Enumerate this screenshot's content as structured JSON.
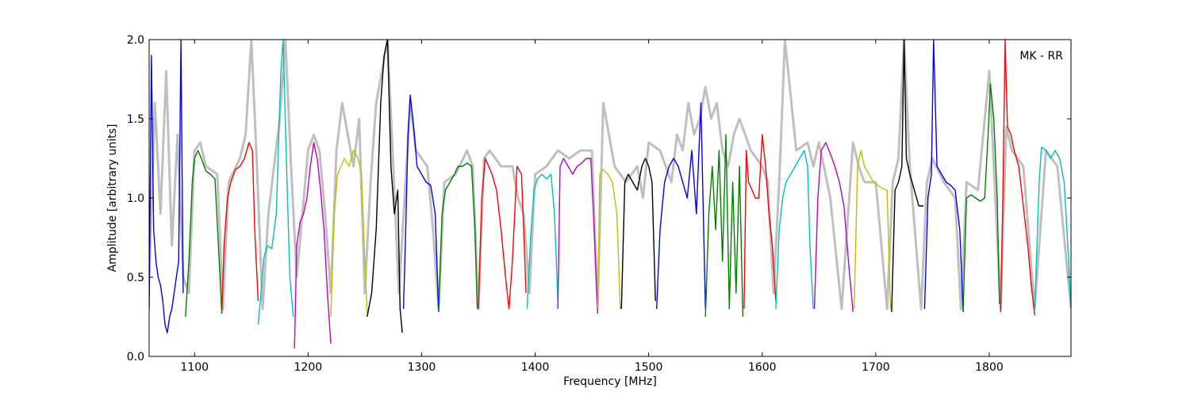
{
  "chart_data": {
    "type": "line",
    "title": "",
    "xlabel": "Frequency [MHz]",
    "ylabel": "Amplitude [arbitrary units]",
    "xlim": [
      1060,
      1872
    ],
    "ylim": [
      0.0,
      2.0
    ],
    "xticks": [
      "1100",
      "1200",
      "1300",
      "1400",
      "1500",
      "1600",
      "1700",
      "1800"
    ],
    "yticks": [
      "0.0",
      "0.5",
      "1.0",
      "1.5",
      "2.0"
    ],
    "annotation": "MK - RR",
    "grid": false,
    "legend": "none",
    "background_series": {
      "color": "#bfbfbf",
      "description_key": "unflagged",
      "x": [
        1060,
        1065,
        1070,
        1075,
        1080,
        1085,
        1090,
        1095,
        1100,
        1105,
        1110,
        1120,
        1125,
        1130,
        1140,
        1145,
        1150,
        1155,
        1160,
        1165,
        1170,
        1175,
        1180,
        1185,
        1190,
        1195,
        1200,
        1205,
        1210,
        1215,
        1220,
        1225,
        1230,
        1235,
        1240,
        1245,
        1250,
        1255,
        1260,
        1265,
        1270,
        1275,
        1280,
        1285,
        1290,
        1295,
        1300,
        1305,
        1310,
        1315,
        1320,
        1330,
        1340,
        1345,
        1350,
        1355,
        1360,
        1370,
        1380,
        1385,
        1390,
        1395,
        1400,
        1410,
        1420,
        1430,
        1440,
        1450,
        1455,
        1460,
        1470,
        1480,
        1490,
        1495,
        1500,
        1510,
        1520,
        1525,
        1530,
        1535,
        1540,
        1545,
        1550,
        1555,
        1560,
        1565,
        1570,
        1575,
        1580,
        1590,
        1600,
        1605,
        1610,
        1615,
        1620,
        1630,
        1640,
        1645,
        1650,
        1660,
        1670,
        1680,
        1685,
        1690,
        1700,
        1710,
        1715,
        1720,
        1725,
        1730,
        1740,
        1745,
        1750,
        1760,
        1770,
        1775,
        1780,
        1790,
        1800,
        1810,
        1815,
        1820,
        1830,
        1840,
        1850,
        1860,
        1872
      ],
      "y": [
        0.5,
        1.6,
        0.9,
        1.8,
        0.7,
        1.4,
        0.5,
        0.4,
        1.3,
        1.35,
        1.2,
        1.15,
        0.3,
        1.1,
        1.25,
        1.4,
        2.0,
        1.2,
        0.3,
        0.9,
        1.2,
        1.5,
        2.0,
        1.2,
        0.5,
        0.9,
        1.3,
        1.4,
        1.3,
        0.9,
        0.4,
        1.3,
        1.6,
        1.4,
        1.2,
        1.5,
        0.4,
        1.1,
        1.6,
        1.8,
        2.0,
        1.2,
        0.4,
        1.0,
        1.6,
        1.3,
        1.25,
        1.2,
        0.8,
        0.3,
        1.1,
        1.15,
        1.3,
        1.2,
        0.3,
        1.25,
        1.3,
        1.2,
        1.2,
        1.0,
        0.9,
        0.4,
        1.15,
        1.2,
        1.3,
        1.25,
        1.3,
        1.3,
        0.3,
        1.6,
        1.2,
        1.1,
        1.2,
        1.0,
        1.35,
        1.3,
        1.1,
        1.4,
        1.3,
        1.6,
        1.4,
        1.5,
        1.7,
        1.5,
        1.6,
        1.3,
        1.2,
        1.4,
        1.5,
        1.3,
        1.2,
        1.1,
        0.4,
        1.1,
        2.0,
        1.3,
        1.35,
        1.2,
        1.35,
        1.0,
        0.3,
        1.35,
        1.2,
        1.1,
        1.1,
        0.3,
        1.1,
        1.25,
        2.0,
        1.2,
        0.3,
        1.1,
        1.25,
        1.1,
        1.0,
        0.3,
        1.1,
        1.05,
        1.8,
        0.3,
        1.45,
        1.3,
        1.2,
        0.3,
        1.3,
        1.2,
        0.3
      ]
    },
    "colors": [
      "#0000ff",
      "#008000",
      "#ff0000",
      "#00bfbf",
      "#bf00bf",
      "#bfbf00",
      "#000000"
    ],
    "series": [
      {
        "color": "#0000ff",
        "x": [
          1060,
          1062,
          1064,
          1066,
          1068,
          1070,
          1072,
          1074,
          1076,
          1078,
          1080,
          1082,
          1084,
          1086,
          1088,
          1090
        ],
        "y": [
          0.3,
          1.9,
          0.8,
          0.6,
          0.5,
          0.45,
          0.35,
          0.2,
          0.15,
          0.25,
          0.3,
          0.4,
          0.5,
          0.6,
          2.0,
          0.4
        ]
      },
      {
        "color": "#008000",
        "x": [
          1092,
          1095,
          1098,
          1100,
          1103,
          1106,
          1110,
          1114,
          1118,
          1121,
          1124
        ],
        "y": [
          0.25,
          0.6,
          1.1,
          1.25,
          1.3,
          1.25,
          1.17,
          1.15,
          1.12,
          0.7,
          0.27
        ]
      },
      {
        "color": "#ff0000",
        "x": [
          1124,
          1126,
          1129,
          1132,
          1136,
          1140,
          1144,
          1148,
          1151,
          1153,
          1156
        ],
        "y": [
          0.27,
          0.7,
          1.0,
          1.1,
          1.18,
          1.2,
          1.25,
          1.35,
          1.3,
          0.8,
          0.35
        ]
      },
      {
        "color": "#00bfbf",
        "x": [
          1156,
          1158,
          1161,
          1164,
          1168,
          1172,
          1176,
          1178,
          1181,
          1184,
          1187
        ],
        "y": [
          0.2,
          0.35,
          0.62,
          0.7,
          0.68,
          0.9,
          1.8,
          2.0,
          1.2,
          0.5,
          0.25
        ]
      },
      {
        "color": "#bf00bf",
        "x": [
          1188,
          1190,
          1193,
          1196,
          1199,
          1202,
          1205,
          1208,
          1211,
          1214,
          1217,
          1220
        ],
        "y": [
          0.05,
          0.7,
          0.85,
          0.9,
          1.0,
          1.2,
          1.35,
          1.25,
          1.05,
          0.8,
          0.4,
          0.08
        ]
      },
      {
        "color": "#bfbf00",
        "x": [
          1220,
          1223,
          1226,
          1229,
          1232,
          1236,
          1240,
          1244,
          1247,
          1250,
          1252
        ],
        "y": [
          0.25,
          0.9,
          1.15,
          1.2,
          1.25,
          1.2,
          1.3,
          1.25,
          1.15,
          0.6,
          0.27
        ]
      },
      {
        "color": "#000000",
        "x": [
          1252,
          1256,
          1260,
          1264,
          1267,
          1270,
          1273,
          1276,
          1279,
          1281,
          1283
        ],
        "y": [
          0.25,
          0.4,
          0.8,
          1.6,
          1.9,
          2.0,
          1.2,
          0.9,
          1.05,
          0.3,
          0.15
        ]
      },
      {
        "color": "#0000ff",
        "x": [
          1284,
          1286,
          1288,
          1290,
          1293,
          1296,
          1300,
          1304,
          1308,
          1312,
          1315
        ],
        "y": [
          0.3,
          0.8,
          1.4,
          1.65,
          1.45,
          1.2,
          1.15,
          1.1,
          1.08,
          0.9,
          0.28
        ]
      },
      {
        "color": "#008000",
        "x": [
          1315,
          1318,
          1321,
          1325,
          1329,
          1332,
          1336,
          1340,
          1344,
          1347,
          1349
        ],
        "y": [
          0.28,
          0.9,
          1.05,
          1.1,
          1.15,
          1.2,
          1.2,
          1.22,
          1.2,
          0.8,
          0.3
        ]
      },
      {
        "color": "#ff0000",
        "x": [
          1350,
          1353,
          1356,
          1359,
          1362,
          1366,
          1370,
          1374,
          1377,
          1380,
          1384,
          1388,
          1392
        ],
        "y": [
          0.3,
          1.0,
          1.25,
          1.2,
          1.15,
          1.05,
          0.8,
          0.5,
          0.3,
          0.6,
          1.2,
          1.15,
          0.4
        ]
      },
      {
        "color": "#00bfbf",
        "x": [
          1393,
          1396,
          1399,
          1402,
          1406,
          1410,
          1414,
          1417,
          1420
        ],
        "y": [
          0.3,
          0.75,
          1.05,
          1.12,
          1.15,
          1.12,
          1.15,
          0.9,
          0.35
        ]
      },
      {
        "color": "#bf00bf",
        "x": [
          1420,
          1422,
          1425,
          1429,
          1433,
          1437,
          1441,
          1445,
          1449,
          1452,
          1455
        ],
        "y": [
          0.3,
          1.2,
          1.25,
          1.2,
          1.15,
          1.2,
          1.22,
          1.25,
          1.25,
          0.8,
          0.27
        ]
      },
      {
        "color": "#bfbf00",
        "x": [
          1455,
          1457,
          1460,
          1464,
          1468,
          1472,
          1475
        ],
        "y": [
          0.3,
          1.15,
          1.18,
          1.15,
          1.1,
          0.9,
          0.3
        ]
      },
      {
        "color": "#000000",
        "x": [
          1476,
          1479,
          1482,
          1486,
          1490,
          1494,
          1497,
          1500,
          1503,
          1506
        ],
        "y": [
          0.3,
          1.1,
          1.15,
          1.1,
          1.05,
          1.2,
          1.25,
          1.2,
          1.1,
          0.35
        ]
      },
      {
        "color": "#0000ff",
        "x": [
          1507,
          1510,
          1514,
          1518,
          1522,
          1526,
          1530,
          1534,
          1538,
          1542,
          1546,
          1550
        ],
        "y": [
          0.3,
          0.8,
          1.1,
          1.2,
          1.25,
          1.2,
          1.1,
          1.0,
          1.3,
          0.9,
          1.6,
          0.3
        ]
      },
      {
        "color": "#008000",
        "x": [
          1550,
          1553,
          1556,
          1559,
          1562,
          1565,
          1568,
          1571,
          1574,
          1577,
          1580,
          1583
        ],
        "y": [
          0.25,
          0.9,
          1.2,
          0.8,
          1.3,
          0.6,
          1.4,
          0.3,
          1.1,
          0.4,
          1.2,
          0.25
        ]
      },
      {
        "color": "#ff0000",
        "x": [
          1584,
          1586,
          1588,
          1591,
          1594,
          1597,
          1600,
          1603,
          1606,
          1609,
          1612
        ],
        "y": [
          0.3,
          1.3,
          1.1,
          1.05,
          1.0,
          1.0,
          1.4,
          1.2,
          0.9,
          0.7,
          0.35
        ]
      },
      {
        "color": "#00bfbf",
        "x": [
          1612,
          1615,
          1618,
          1621,
          1625,
          1629,
          1633,
          1637,
          1640,
          1642,
          1645
        ],
        "y": [
          0.3,
          0.8,
          1.0,
          1.1,
          1.15,
          1.2,
          1.25,
          1.3,
          1.2,
          0.7,
          0.3
        ]
      },
      {
        "color": "#bf00bf",
        "x": [
          1646,
          1649,
          1652,
          1656,
          1660,
          1664,
          1668,
          1672,
          1676,
          1680
        ],
        "y": [
          0.3,
          1.0,
          1.3,
          1.35,
          1.28,
          1.2,
          1.1,
          0.95,
          0.6,
          0.28
        ]
      },
      {
        "color": "#bfbf00",
        "x": [
          1681,
          1684,
          1687,
          1690,
          1694,
          1698,
          1702,
          1706,
          1710,
          1713
        ],
        "y": [
          0.3,
          1.2,
          1.3,
          1.2,
          1.15,
          1.1,
          1.08,
          1.06,
          1.05,
          0.3
        ]
      },
      {
        "color": "#000000",
        "x": [
          1714,
          1717,
          1720,
          1723,
          1725,
          1727,
          1730,
          1734,
          1738,
          1742
        ],
        "y": [
          0.28,
          1.05,
          1.1,
          1.2,
          2.0,
          1.25,
          1.15,
          1.05,
          0.95,
          0.95
        ]
      },
      {
        "color": "#0000ff",
        "x": [
          1743,
          1746,
          1749,
          1751,
          1754,
          1758,
          1762,
          1766,
          1770,
          1774,
          1777
        ],
        "y": [
          0.3,
          1.0,
          1.15,
          2.0,
          1.2,
          1.15,
          1.1,
          1.08,
          1.05,
          0.8,
          0.28
        ]
      },
      {
        "color": "#008000",
        "x": [
          1777,
          1780,
          1784,
          1788,
          1792,
          1796,
          1799,
          1801,
          1804,
          1807,
          1809
        ],
        "y": [
          0.3,
          1.0,
          1.02,
          1.0,
          0.98,
          1.0,
          1.4,
          1.72,
          1.5,
          1.0,
          0.33
        ]
      },
      {
        "color": "#ff0000",
        "x": [
          1810,
          1812,
          1814,
          1816,
          1819,
          1822,
          1826,
          1830,
          1834,
          1837,
          1840
        ],
        "y": [
          0.28,
          1.0,
          2.0,
          1.45,
          1.4,
          1.3,
          1.2,
          0.95,
          0.7,
          0.45,
          0.26
        ]
      },
      {
        "color": "#00bfbf",
        "x": [
          1840,
          1842,
          1844,
          1846,
          1850,
          1854,
          1858,
          1862,
          1866,
          1870,
          1872
        ],
        "y": [
          0.3,
          0.7,
          1.1,
          1.32,
          1.3,
          1.25,
          1.3,
          1.25,
          1.1,
          0.6,
          0.3
        ]
      }
    ]
  }
}
